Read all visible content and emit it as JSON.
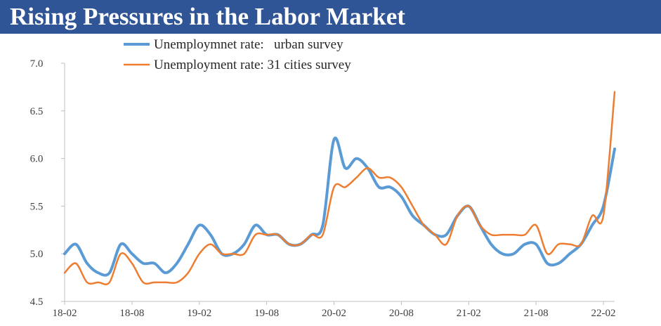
{
  "title": "Rising Pressures in the Labor Market",
  "chart_data": {
    "type": "line",
    "title": "Rising Pressures in the Labor Market",
    "xlabel": "",
    "ylabel": "",
    "ylim": [
      4.5,
      7.0
    ],
    "yticks": [
      "4.5",
      "5.0",
      "5.5",
      "6.0",
      "6.5",
      "7.0"
    ],
    "x": [
      "18-02",
      "18-03",
      "18-04",
      "18-05",
      "18-06",
      "18-07",
      "18-08",
      "18-09",
      "18-10",
      "18-11",
      "18-12",
      "19-01",
      "19-02",
      "19-03",
      "19-04",
      "19-05",
      "19-06",
      "19-07",
      "19-08",
      "19-09",
      "19-10",
      "19-11",
      "19-12",
      "20-01",
      "20-02",
      "20-03",
      "20-04",
      "20-05",
      "20-06",
      "20-07",
      "20-08",
      "20-09",
      "20-10",
      "20-11",
      "20-12",
      "21-01",
      "21-02",
      "21-03",
      "21-04",
      "21-05",
      "21-06",
      "21-07",
      "21-08",
      "21-09",
      "21-10",
      "21-11",
      "21-12",
      "22-01",
      "22-02",
      "22-03"
    ],
    "xtick_labels": [
      "18-02",
      "18-08",
      "19-02",
      "19-08",
      "20-02",
      "20-08",
      "21-02",
      "21-08",
      "22-02"
    ],
    "grid": false,
    "legend_position": "top",
    "series": [
      {
        "name": "Unemploymnet rate:   urban survey",
        "color": "#5b9bd5",
        "values": [
          5.0,
          5.1,
          4.9,
          4.8,
          4.8,
          5.1,
          5.0,
          4.9,
          4.9,
          4.8,
          4.9,
          5.1,
          5.3,
          5.2,
          5.0,
          5.0,
          5.1,
          5.3,
          5.2,
          5.2,
          5.1,
          5.1,
          5.2,
          5.3,
          6.2,
          5.9,
          6.0,
          5.9,
          5.7,
          5.7,
          5.6,
          5.4,
          5.3,
          5.2,
          5.2,
          5.4,
          5.5,
          5.3,
          5.1,
          5.0,
          5.0,
          5.1,
          5.1,
          4.9,
          4.9,
          5.0,
          5.1,
          5.3,
          5.5,
          6.1
        ]
      },
      {
        "name": "Unemployment rate: 31 cities survey",
        "color": "#ed7d31",
        "values": [
          4.8,
          4.9,
          4.7,
          4.7,
          4.7,
          5.0,
          4.9,
          4.7,
          4.7,
          4.7,
          4.7,
          4.8,
          5.0,
          5.1,
          5.0,
          5.0,
          5.0,
          5.2,
          5.2,
          5.2,
          5.1,
          5.1,
          5.2,
          5.2,
          5.7,
          5.7,
          5.8,
          5.9,
          5.8,
          5.8,
          5.7,
          5.5,
          5.3,
          5.2,
          5.1,
          5.4,
          5.5,
          5.3,
          5.2,
          5.2,
          5.2,
          5.2,
          5.3,
          5.0,
          5.1,
          5.1,
          5.1,
          5.4,
          5.4,
          6.7
        ]
      }
    ]
  }
}
